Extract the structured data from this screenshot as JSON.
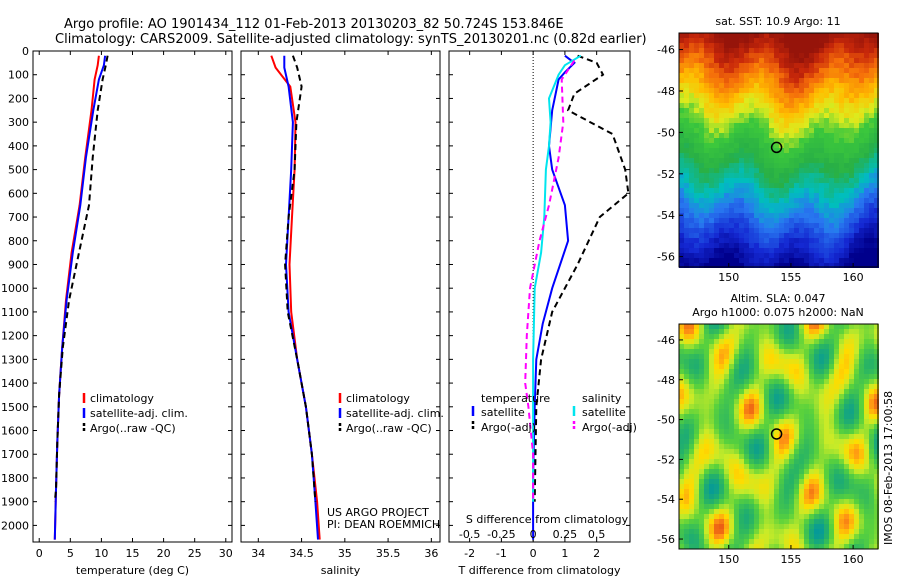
{
  "header": {
    "line1": "Argo profile: AO 1901434_112 01-Feb-2013 20130203_82 50.724S 153.846E",
    "line2": "Climatology: CARS2009. Satellite-adjusted climatology: synTS_20130201.nc (0.82d earlier)"
  },
  "colors": {
    "climatology": "#ff0000",
    "satellite": "#0000ff",
    "argo": "#000000",
    "salinity_sat": "#00e5ee",
    "salinity_argo": "#ff00ff"
  },
  "chart_data": [
    {
      "type": "line",
      "id": "temperature",
      "xlabel": "temperature (deg C)",
      "xlim": [
        -1,
        31
      ],
      "xticks": [
        0,
        5,
        10,
        15,
        20,
        25,
        30
      ],
      "ylim": [
        2070,
        0
      ],
      "yticks": [
        0,
        100,
        200,
        300,
        400,
        500,
        600,
        700,
        800,
        900,
        1000,
        1100,
        1200,
        1300,
        1400,
        1500,
        1600,
        1700,
        1800,
        1900,
        2000
      ],
      "legend": [
        "climatology",
        "satellite-adj. clim.",
        "Argo(..raw -QC)"
      ],
      "legend_position": "lower-right",
      "series": [
        {
          "name": "climatology",
          "style": "solid",
          "color": "#ff0000",
          "points": [
            [
              9.6,
              20
            ],
            [
              9.4,
              60
            ],
            [
              8.9,
              120
            ],
            [
              8.4,
              250
            ],
            [
              7.4,
              450
            ],
            [
              6.5,
              650
            ],
            [
              5.2,
              850
            ],
            [
              4.3,
              1050
            ],
            [
              3.7,
              1250
            ],
            [
              3.2,
              1450
            ],
            [
              2.9,
              1650
            ],
            [
              2.7,
              1850
            ],
            [
              2.5,
              2060
            ]
          ]
        },
        {
          "name": "satellite-adj. clim.",
          "style": "solid",
          "color": "#0000ff",
          "points": [
            [
              10.6,
              20
            ],
            [
              10.4,
              60
            ],
            [
              9.6,
              120
            ],
            [
              8.7,
              250
            ],
            [
              7.5,
              450
            ],
            [
              6.6,
              650
            ],
            [
              5.4,
              850
            ],
            [
              4.4,
              1050
            ],
            [
              3.7,
              1250
            ],
            [
              3.2,
              1450
            ],
            [
              2.9,
              1650
            ],
            [
              2.7,
              1850
            ],
            [
              2.5,
              2060
            ]
          ]
        },
        {
          "name": "Argo(..raw -QC)",
          "style": "dashed",
          "color": "#000000",
          "points": [
            [
              11.0,
              20
            ],
            [
              10.7,
              60
            ],
            [
              10.2,
              120
            ],
            [
              9.4,
              250
            ],
            [
              8.6,
              450
            ],
            [
              8.0,
              650
            ],
            [
              6.4,
              850
            ],
            [
              4.8,
              1050
            ],
            [
              3.8,
              1250
            ],
            [
              3.2,
              1450
            ],
            [
              2.9,
              1650
            ],
            [
              2.7,
              1850
            ],
            [
              2.5,
              1900
            ]
          ]
        }
      ]
    },
    {
      "type": "line",
      "id": "salinity",
      "xlabel": "salinity",
      "xlim": [
        33.8,
        36.1
      ],
      "xticks": [
        34,
        34.5,
        35,
        35.5,
        36
      ],
      "xticklabels": [
        "34",
        "34.5",
        "35",
        "35.5",
        "36"
      ],
      "ylim": [
        2070,
        0
      ],
      "legend": [
        "climatology",
        "satellite-adj. clim.",
        "Argo(..raw -QC)"
      ],
      "legend_position": "lower-right",
      "annotation": [
        "US ARGO PROJECT",
        "PI: DEAN ROEMMICH"
      ],
      "series": [
        {
          "name": "climatology",
          "style": "solid",
          "color": "#ff0000",
          "points": [
            [
              34.15,
              20
            ],
            [
              34.2,
              70
            ],
            [
              34.37,
              150
            ],
            [
              34.43,
              300
            ],
            [
              34.42,
              500
            ],
            [
              34.39,
              700
            ],
            [
              34.36,
              900
            ],
            [
              34.38,
              1100
            ],
            [
              34.45,
              1300
            ],
            [
              34.55,
              1500
            ],
            [
              34.62,
              1700
            ],
            [
              34.68,
              1900
            ],
            [
              34.71,
              2060
            ]
          ]
        },
        {
          "name": "satellite-adj. clim.",
          "style": "solid",
          "color": "#0000ff",
          "points": [
            [
              34.3,
              20
            ],
            [
              34.3,
              70
            ],
            [
              34.35,
              150
            ],
            [
              34.4,
              300
            ],
            [
              34.38,
              500
            ],
            [
              34.35,
              700
            ],
            [
              34.32,
              900
            ],
            [
              34.35,
              1100
            ],
            [
              34.45,
              1300
            ],
            [
              34.55,
              1500
            ],
            [
              34.62,
              1700
            ],
            [
              34.66,
              1900
            ],
            [
              34.69,
              2060
            ]
          ]
        },
        {
          "name": "Argo(..raw -QC)",
          "style": "dashed",
          "color": "#000000",
          "points": [
            [
              34.4,
              20
            ],
            [
              34.45,
              70
            ],
            [
              34.5,
              150
            ],
            [
              34.44,
              300
            ],
            [
              34.42,
              500
            ],
            [
              34.35,
              700
            ],
            [
              34.31,
              900
            ],
            [
              34.34,
              1100
            ],
            [
              34.45,
              1300
            ],
            [
              34.55,
              1500
            ],
            [
              34.62,
              1700
            ],
            [
              34.66,
              1900
            ]
          ]
        }
      ]
    },
    {
      "type": "line",
      "id": "difference",
      "xlabel": "T difference from climatology",
      "xlabel_top": "S difference from climatology",
      "xlim": [
        -2.65,
        3.05
      ],
      "xticks": [
        -2,
        -1,
        0,
        1,
        2
      ],
      "xticks_s": [
        -0.5,
        -0.25,
        0,
        0.25,
        0.5
      ],
      "xticks_s_labels": [
        "-0.5",
        "-0.25",
        "0",
        "0.25",
        "0.5"
      ],
      "ylim": [
        2070,
        0
      ],
      "legend_temperature": {
        "title": "temperature",
        "entries": [
          "satellite",
          "Argo(-adj)"
        ]
      },
      "legend_salinity": {
        "title": "salinity",
        "entries": [
          "satellite",
          "Argo(-adj)"
        ]
      },
      "series": [
        {
          "name": "temperature satellite",
          "style": "solid",
          "color": "#0000ff",
          "points": [
            [
              1.0,
              20
            ],
            [
              1.3,
              50
            ],
            [
              1.0,
              90
            ],
            [
              0.8,
              120
            ],
            [
              0.6,
              250
            ],
            [
              0.5,
              400
            ],
            [
              0.6,
              500
            ],
            [
              1.0,
              650
            ],
            [
              1.1,
              800
            ],
            [
              0.6,
              1000
            ],
            [
              0.3,
              1150
            ],
            [
              0.1,
              1300
            ],
            [
              0.05,
              1500
            ],
            [
              0.0,
              1800
            ],
            [
              0.0,
              2060
            ]
          ]
        },
        {
          "name": "temperature Argo(-adj)",
          "style": "dashed",
          "color": "#000000",
          "points": [
            [
              1.4,
              20
            ],
            [
              2.0,
              50
            ],
            [
              2.2,
              100
            ],
            [
              1.3,
              180
            ],
            [
              1.1,
              250
            ],
            [
              1.8,
              300
            ],
            [
              2.5,
              350
            ],
            [
              2.9,
              500
            ],
            [
              3.0,
              600
            ],
            [
              2.1,
              700
            ],
            [
              1.4,
              900
            ],
            [
              0.6,
              1100
            ],
            [
              0.25,
              1300
            ],
            [
              0.1,
              1500
            ],
            [
              0.05,
              1900
            ]
          ]
        },
        {
          "name": "salinity satellite",
          "style": "solid",
          "color": "#00e5ee",
          "points": [
            [
              1.5,
              20
            ],
            [
              1.0,
              60
            ],
            [
              0.8,
              100
            ],
            [
              0.5,
              200
            ],
            [
              0.55,
              300
            ],
            [
              0.5,
              400
            ],
            [
              0.4,
              500
            ],
            [
              0.35,
              700
            ],
            [
              0.25,
              850
            ],
            [
              0.05,
              1000
            ],
            [
              0.0,
              1300
            ],
            [
              0.0,
              1600
            ],
            [
              0.0,
              1900
            ]
          ]
        },
        {
          "name": "salinity Argo(-adj)",
          "style": "dashed",
          "color": "#ff00ff",
          "points": [
            [
              1.3,
              40
            ],
            [
              0.9,
              120
            ],
            [
              0.95,
              300
            ],
            [
              0.8,
              450
            ],
            [
              0.5,
              650
            ],
            [
              0.2,
              800
            ],
            [
              -0.1,
              1000
            ],
            [
              -0.2,
              1200
            ],
            [
              -0.25,
              1400
            ],
            [
              -0.15,
              1500
            ],
            [
              0.0,
              1700
            ],
            [
              0.0,
              1900
            ]
          ]
        }
      ]
    },
    {
      "type": "heatmap",
      "id": "sst-map",
      "title": "sat. SST: 10.9 Argo: 11",
      "xlim": [
        146,
        162
      ],
      "ylim": [
        -56.5,
        -45.2
      ],
      "xticks": [
        150,
        155,
        160
      ],
      "yticks": [
        -46,
        -48,
        -50,
        -52,
        -54,
        -56
      ],
      "marker": {
        "lon": 153.846,
        "lat": -50.724
      }
    },
    {
      "type": "heatmap",
      "id": "sla-map",
      "title": "Altim. SLA: 0.047",
      "subtitle": "Argo h1000: 0.075 h2000: NaN",
      "xlim": [
        146,
        162
      ],
      "ylim": [
        -56.5,
        -45.2
      ],
      "xticks": [
        150,
        155,
        160
      ],
      "yticks": [
        -46,
        -48,
        -50,
        -52,
        -54,
        -56
      ],
      "marker": {
        "lon": 153.846,
        "lat": -50.724
      }
    }
  ],
  "footer_vertical": "IMOS 08-Feb-2013 17:00:58"
}
